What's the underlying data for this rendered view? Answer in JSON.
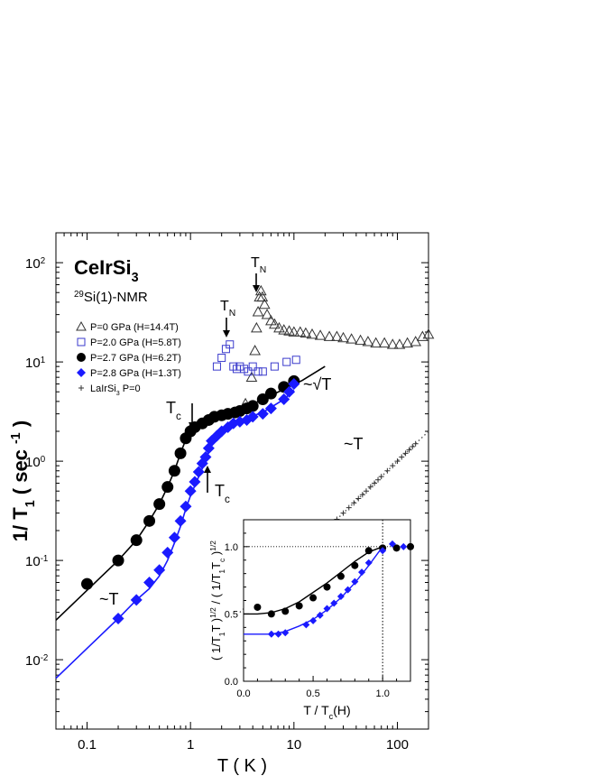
{
  "chart_data": [
    {
      "type": "scatter",
      "scale": "log-log",
      "xlabel": "T ( K )",
      "ylabel_main": "1/ T",
      "ylabel_sub": "1",
      "ylabel_unit": "( sec",
      "ylabel_unit_sup": "-1",
      "ylabel_close": ")",
      "xlim": [
        0.05,
        200
      ],
      "ylim": [
        0.002,
        200
      ],
      "x_ticks": [
        {
          "v": 0.1,
          "label": "0.1"
        },
        {
          "v": 1,
          "label": "1"
        },
        {
          "v": 10,
          "label": "10"
        },
        {
          "v": 100,
          "label": "100"
        }
      ],
      "y_ticks": [
        {
          "v": 0.01,
          "base": "10",
          "exp": "-2"
        },
        {
          "v": 0.1,
          "base": "10",
          "exp": "-1"
        },
        {
          "v": 1,
          "base": "10",
          "exp": "0"
        },
        {
          "v": 10,
          "base": "10",
          "exp": "1"
        },
        {
          "v": 100,
          "base": "10",
          "exp": "2"
        }
      ],
      "title": {
        "main": "CeIrSi",
        "sub": "3"
      },
      "subtitle": {
        "sup": "29",
        "main": "Si(1)-NMR"
      },
      "legend": [
        {
          "marker": "triangle",
          "color": "#333333",
          "text": "P=0 GPa (H=14.4T)"
        },
        {
          "marker": "square",
          "color": "#3a3acc",
          "text": "P=2.0 GPa (H=5.8T)"
        },
        {
          "marker": "circle",
          "color": "#000000",
          "text": "P=2.7 GPa (H=6.2T)"
        },
        {
          "marker": "diamond",
          "color": "#1a1aff",
          "text": "P=2.8 GPa (H=1.3T)"
        },
        {
          "marker": "plus",
          "color": "#333333",
          "text": "LaIrSi",
          "text_sub": "3",
          "text_tail": " P=0"
        }
      ],
      "annotations": {
        "tn1": {
          "base": "T",
          "sub": "N"
        },
        "tn2": {
          "base": "T",
          "sub": "N"
        },
        "tc1": {
          "base": "T",
          "sub": "c"
        },
        "tc2": {
          "base": "T",
          "sub": "c"
        },
        "sqrtT": "~√T",
        "simT_right": "~T",
        "simT_left": "~T"
      },
      "series": [
        {
          "marker": "triangle",
          "color": "#333333",
          "x": [
            3.4,
            3.9,
            4.2,
            4.35,
            4.5,
            4.65,
            4.8,
            4.95,
            5.2,
            5.5,
            6,
            6.5,
            7.2,
            8,
            9,
            10,
            11.5,
            13,
            15,
            18,
            22,
            26,
            30,
            36,
            44,
            52,
            62,
            75,
            90,
            105,
            125,
            150,
            175,
            200
          ],
          "y": [
            3.8,
            7,
            13,
            22,
            32,
            45,
            52,
            45,
            38,
            30,
            26,
            24,
            22,
            21,
            20.5,
            20,
            20,
            19.5,
            19,
            18.5,
            18,
            18,
            17.5,
            17,
            16.5,
            16,
            15.5,
            15.5,
            15,
            15,
            15.5,
            16,
            18,
            19
          ]
        },
        {
          "marker": "square",
          "color": "#3a3acc",
          "x": [
            1.8,
            2.0,
            2.2,
            2.4,
            2.6,
            2.8,
            3.0,
            3.3,
            3.6,
            4.0,
            4.5,
            5.0,
            6.5,
            8.5,
            10.5
          ],
          "y": [
            9,
            11,
            13.5,
            15,
            9,
            8.5,
            9,
            8.5,
            8,
            9,
            8,
            8,
            9,
            10,
            10.5
          ]
        },
        {
          "marker": "circle",
          "color": "#000000",
          "x": [
            0.1,
            0.2,
            0.3,
            0.4,
            0.5,
            0.6,
            0.7,
            0.8,
            0.9,
            1.0,
            1.1,
            1.3,
            1.5,
            1.7,
            2.0,
            2.3,
            2.7,
            3.0,
            3.5,
            4.0,
            5.0,
            6.0,
            8.0,
            10.0
          ],
          "y": [
            0.058,
            0.1,
            0.16,
            0.25,
            0.37,
            0.55,
            0.8,
            1.2,
            1.7,
            2.0,
            2.2,
            2.4,
            2.6,
            2.8,
            2.9,
            3.0,
            3.1,
            3.2,
            3.4,
            3.6,
            4.2,
            4.8,
            5.6,
            6.4
          ]
        },
        {
          "marker": "diamond",
          "color": "#1a1aff",
          "x": [
            0.2,
            0.3,
            0.4,
            0.5,
            0.6,
            0.7,
            0.8,
            0.9,
            1.0,
            1.1,
            1.2,
            1.3,
            1.4,
            1.5,
            1.6,
            1.8,
            2.0,
            2.3,
            2.6,
            3.0,
            3.5,
            4.0,
            5.0,
            6.0,
            8.0,
            9.0,
            10.0
          ],
          "y": [
            0.026,
            0.04,
            0.06,
            0.08,
            0.12,
            0.17,
            0.25,
            0.35,
            0.5,
            0.62,
            0.78,
            0.95,
            1.1,
            1.35,
            1.6,
            1.8,
            2.0,
            2.2,
            2.4,
            2.5,
            2.6,
            2.8,
            3.0,
            3.4,
            4.2,
            5.0,
            6.0
          ]
        },
        {
          "marker": "plus",
          "color": "#333333",
          "x": [
            10,
            12,
            14,
            16,
            18,
            20,
            23,
            26,
            30,
            34,
            38,
            42,
            46,
            50,
            55,
            60,
            65,
            70,
            80,
            90,
            100,
            110,
            120,
            130,
            140,
            150
          ],
          "y": [
            0.1,
            0.12,
            0.14,
            0.16,
            0.18,
            0.2,
            0.23,
            0.26,
            0.3,
            0.34,
            0.38,
            0.42,
            0.46,
            0.5,
            0.55,
            0.6,
            0.65,
            0.7,
            0.8,
            0.9,
            1.0,
            1.1,
            1.2,
            1.3,
            1.4,
            1.5
          ]
        }
      ],
      "fits": [
        {
          "color": "#000000",
          "x": [
            0.05,
            0.1,
            0.2,
            0.3,
            0.4,
            0.5,
            0.6,
            0.7,
            0.8,
            0.9,
            1.0,
            1.2,
            1.5,
            2.0,
            3.0,
            5.0,
            8.0,
            12.0,
            20.0
          ],
          "y": [
            0.025,
            0.05,
            0.1,
            0.16,
            0.25,
            0.37,
            0.55,
            0.8,
            1.2,
            1.65,
            2.0,
            2.3,
            2.6,
            2.9,
            3.3,
            4.2,
            5.3,
            6.5,
            9.0
          ]
        },
        {
          "color": "#1a1aff",
          "x": [
            0.05,
            0.1,
            0.2,
            0.3,
            0.4,
            0.5,
            0.6,
            0.7,
            0.8,
            0.9,
            1.0,
            1.2,
            1.4,
            1.6,
            2.0,
            3.0,
            5.0,
            8.0,
            10.0
          ],
          "y": [
            0.0065,
            0.013,
            0.026,
            0.04,
            0.052,
            0.07,
            0.1,
            0.15,
            0.22,
            0.33,
            0.45,
            0.7,
            1.0,
            1.5,
            2.0,
            2.6,
            3.1,
            4.2,
            5.2
          ]
        },
        {
          "color": "#555555",
          "dotted": true,
          "x": [
            3.0,
            200
          ],
          "y": [
            0.03,
            2.0
          ]
        }
      ]
    },
    {
      "type": "scatter",
      "scale": "linear",
      "xlabel": {
        "main": "T / T",
        "sub": "c",
        "tail": "(H)"
      },
      "ylabel": {
        "p1": "( 1/T",
        "s1": "1",
        "p2": "T )",
        "e1": "1/2",
        "p3": " / ( 1/T",
        "s2": "1",
        "p4": "T",
        "s3": "c",
        "p5": " )",
        "e2": "1/2"
      },
      "xlim": [
        0,
        1.2
      ],
      "ylim": [
        0,
        1.2
      ],
      "x_ticks": [
        {
          "v": 0,
          "label": "0.0"
        },
        {
          "v": 0.5,
          "label": "0.5"
        },
        {
          "v": 1.0,
          "label": "1.0"
        }
      ],
      "y_ticks": [
        {
          "v": 0,
          "label": "0.0"
        },
        {
          "v": 0.5,
          "label": "0.5"
        },
        {
          "v": 1.0,
          "label": "1.0"
        }
      ],
      "series": [
        {
          "marker": "circle",
          "color": "#000000",
          "x": [
            0.1,
            0.2,
            0.3,
            0.4,
            0.5,
            0.6,
            0.7,
            0.8,
            0.9,
            1.0,
            1.1,
            1.2
          ],
          "y": [
            0.55,
            0.5,
            0.52,
            0.56,
            0.62,
            0.7,
            0.78,
            0.86,
            0.97,
            0.99,
            0.99,
            1.0
          ]
        },
        {
          "marker": "diamond",
          "color": "#1a1aff",
          "x": [
            0.2,
            0.25,
            0.3,
            0.45,
            0.5,
            0.55,
            0.6,
            0.65,
            0.7,
            0.75,
            0.8,
            0.85,
            0.9,
            1.0,
            1.07,
            1.15
          ],
          "y": [
            0.35,
            0.35,
            0.36,
            0.42,
            0.45,
            0.49,
            0.54,
            0.58,
            0.63,
            0.68,
            0.74,
            0.81,
            0.88,
            0.97,
            1.02,
            1.0
          ]
        }
      ],
      "fits": [
        {
          "color": "#000000",
          "x": [
            0,
            0.1,
            0.2,
            0.3,
            0.4,
            0.5,
            0.6,
            0.7,
            0.8,
            0.9,
            1.0
          ],
          "y": [
            0.5,
            0.5,
            0.51,
            0.54,
            0.59,
            0.66,
            0.73,
            0.81,
            0.89,
            0.96,
            1.0
          ]
        },
        {
          "color": "#1a1aff",
          "x": [
            0,
            0.1,
            0.2,
            0.3,
            0.4,
            0.5,
            0.6,
            0.7,
            0.8,
            0.9,
            1.0
          ],
          "y": [
            0.35,
            0.35,
            0.35,
            0.37,
            0.41,
            0.46,
            0.53,
            0.62,
            0.73,
            0.86,
            1.0
          ]
        }
      ],
      "ref_lines": {
        "hline": 1.0,
        "vline": 1.0
      }
    }
  ]
}
